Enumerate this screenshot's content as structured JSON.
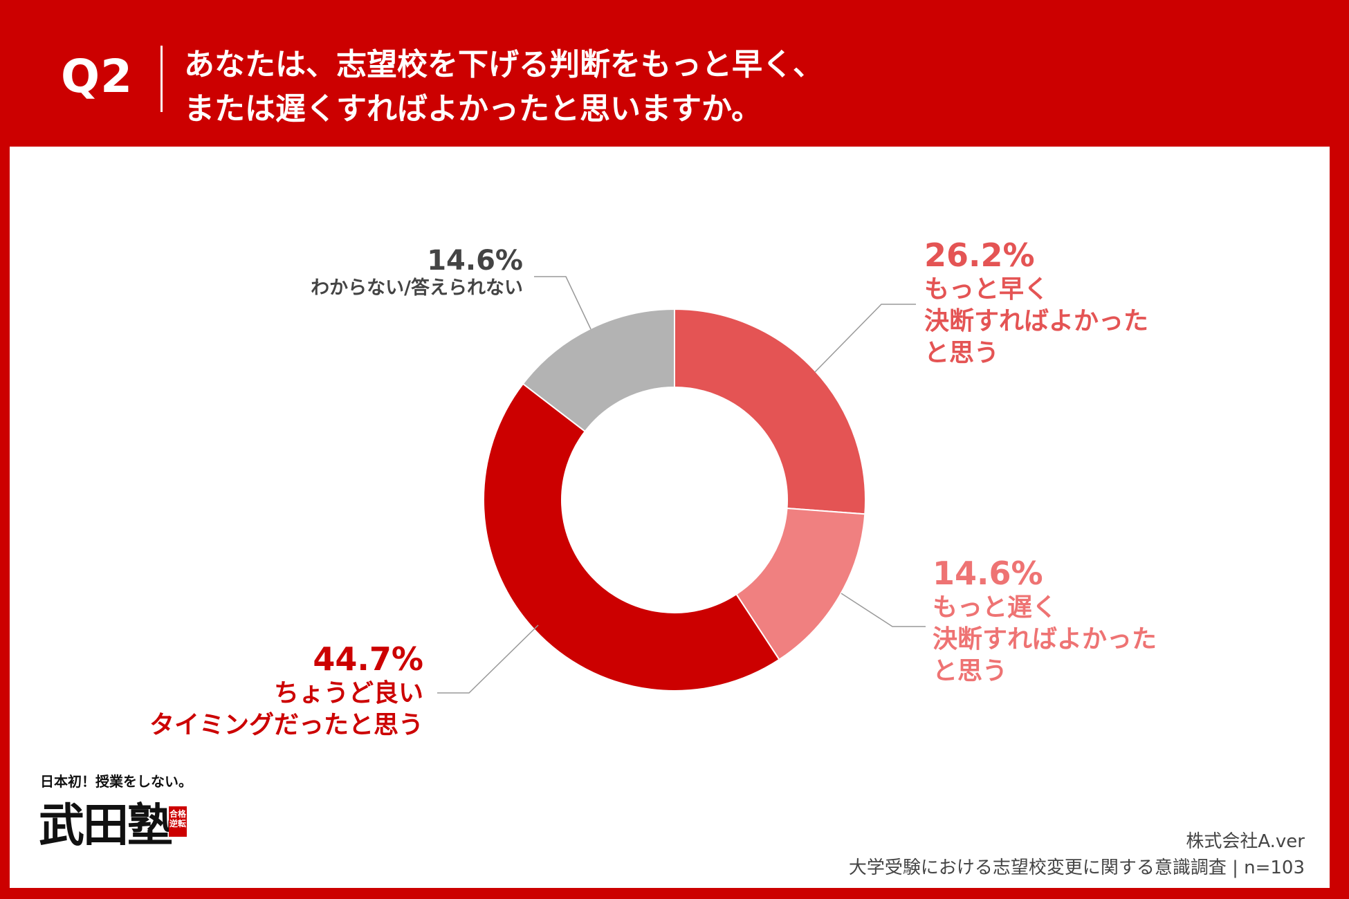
{
  "header": {
    "question_number": "Q2",
    "question_line1": "あなたは、志望校を下げる判断をもっと早く、",
    "question_line2": "または遅くすればよかったと思いますか。"
  },
  "chart_data": {
    "type": "pie",
    "variant": "donut",
    "title": "",
    "slices": [
      {
        "pct_label": "26.2%",
        "value": 26.2,
        "label": "もっと早く\n決断すればよかった\nと思う",
        "color": "#e45454"
      },
      {
        "pct_label": "14.6%",
        "value": 14.6,
        "label": "もっと遅く\n決断すればよかった\nと思う",
        "color": "#f08080"
      },
      {
        "pct_label": "44.7%",
        "value": 44.7,
        "label": "ちょうど良い\nタイミングだったと思う",
        "color": "#cc0000"
      },
      {
        "pct_label": "14.6%",
        "value": 14.6,
        "label": "わからない/答えられない",
        "color": "#b3b3b3"
      }
    ],
    "start_angle": "12 o'clock",
    "direction": "clockwise"
  },
  "logo": {
    "tagline": "日本初！授業をしない。",
    "name": "武田塾",
    "seal": "合格逆転"
  },
  "source": {
    "company": "株式会社A.ver",
    "survey": "大学受験における志望校変更に関する意識調査 | n=103"
  }
}
